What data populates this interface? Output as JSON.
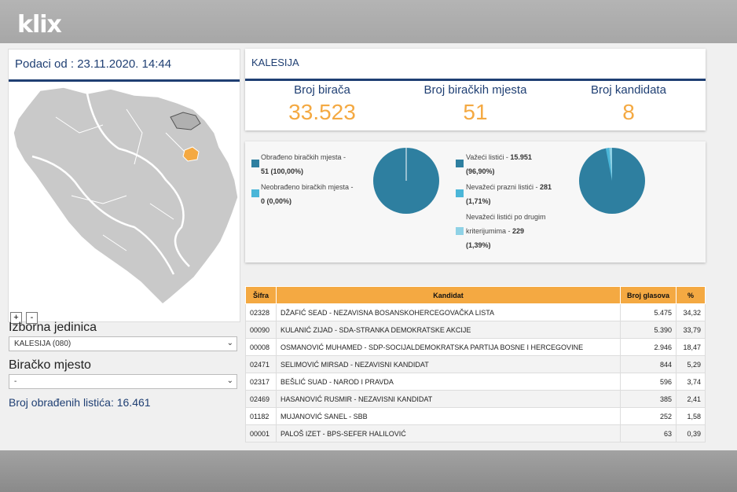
{
  "logo": "klix",
  "left": {
    "date_label": "Podaci od : 23.11.2020. 14:44",
    "zoom_in": "+",
    "zoom_out": "-",
    "unit_label": "Izborna jedinica",
    "unit_value": "KALESIJA (080)",
    "station_label": "Biračko mjesto",
    "station_value": "-",
    "processed_label": "Broj obrađenih listića: 16.461"
  },
  "stats": {
    "municipality": "KALESIJA",
    "voters_label": "Broj birača",
    "voters_value": "33.523",
    "stations_label": "Broj biračkih mjesta",
    "stations_value": "51",
    "candidates_label": "Broj kandidata",
    "candidates_value": "8"
  },
  "pies": {
    "processed_label": "Obrađeno biračkih mjesta -",
    "processed_value": "51 (100,00%)",
    "unprocessed_label": "Neobrađeno biračkih mjesta -",
    "unprocessed_value": "0 (0,00%)",
    "valid_label": "Važeći listići -",
    "valid_value": "15.951",
    "valid_pct": "(96,90%)",
    "blank_label": "Nevažeći prazni listići -",
    "blank_value": "281",
    "blank_pct": "(1,71%)",
    "other_label1": "Nevažeći listići po drugim",
    "other_label2": "kriterijumima -",
    "other_value": "229",
    "other_pct": "(1,39%)",
    "colors": {
      "main": "#2e7fa0",
      "light": "#4bb6d8",
      "pale": "#8fd2e6"
    },
    "stations_fractions": [
      1.0,
      0.0
    ],
    "ballots_fractions": [
      0.969,
      0.0171,
      0.0139
    ]
  },
  "table": {
    "headers": [
      "Šifra",
      "Kandidat",
      "Broj glasova",
      "%"
    ],
    "rows": [
      [
        "02328",
        "DŽAFIĆ SEAD - NEZAVISNA BOSANSKOHERCEGOVAČKA LISTA",
        "5.475",
        "34,32"
      ],
      [
        "00090",
        "KULANIĆ ZIJAD - SDA-STRANKA DEMOKRATSKE AKCIJE",
        "5.390",
        "33,79"
      ],
      [
        "00008",
        "OSMANOVIĆ MUHAMED - SDP-SOCIJALDEMOKRATSKA PARTIJA BOSNE I HERCEGOVINE",
        "2.946",
        "18,47"
      ],
      [
        "02471",
        "SELIMOVIĆ MIRSAD - NEZAVISNI KANDIDAT",
        "844",
        "5,29"
      ],
      [
        "02317",
        "BEŠLIĆ SUAD - NAROD I PRAVDA",
        "596",
        "3,74"
      ],
      [
        "02469",
        "HASANOVIĆ RUSMIR - NEZAVISNI KANDIDAT",
        "385",
        "2,41"
      ],
      [
        "01182",
        "MUJANOVIĆ SANEL - SBB",
        "252",
        "1,58"
      ],
      [
        "00001",
        "PALOŠ IZET - BPS-SEFER HALILOVIĆ",
        "63",
        "0,39"
      ]
    ]
  }
}
